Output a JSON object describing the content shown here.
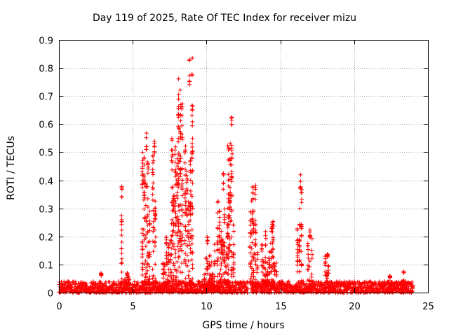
{
  "chart_data": {
    "type": "scatter",
    "title": "Day 119 of 2025, Rate Of TEC Index for receiver mizu",
    "xlabel": "GPS time / hours",
    "ylabel": "ROTI / TECUs",
    "xlim": [
      0,
      25
    ],
    "ylim": [
      0,
      0.9
    ],
    "xticks": [
      0,
      5,
      10,
      15,
      20,
      25
    ],
    "yticks": [
      0,
      0.1,
      0.2,
      0.3,
      0.4,
      0.5,
      0.6,
      0.7,
      0.8,
      0.9
    ],
    "xtick_labels": [
      "0",
      "5",
      "10",
      "15",
      "20",
      "25"
    ],
    "ytick_labels": [
      "0",
      "0.1",
      "0.2",
      "0.3",
      "0.4",
      "0.5",
      "0.6",
      "0.7",
      "0.8",
      "0.9"
    ],
    "grid": true,
    "marker": "+",
    "color": "#ff0000",
    "data_x_range": [
      0,
      24
    ],
    "baseline_level": [
      0.0,
      0.04
    ],
    "data_gap": [
      12.8,
      13.05
    ],
    "activity_regions": [
      {
        "x": [
          2.7,
          3.0
        ],
        "peak": 0.07
      },
      {
        "x": [
          4.2,
          4.3
        ],
        "peak": 0.39
      },
      {
        "x": [
          4.4,
          4.8
        ],
        "peak": 0.07
      },
      {
        "x": [
          5.6,
          6.2
        ],
        "peak": 0.57
      },
      {
        "x": [
          6.3,
          6.6
        ],
        "peak": 0.54
      },
      {
        "x": [
          7.0,
          7.6
        ],
        "peak": 0.2
      },
      {
        "x": [
          7.6,
          8.4
        ],
        "peak": 0.77
      },
      {
        "x": [
          8.5,
          9.1
        ],
        "peak": 0.86
      },
      {
        "x": [
          9.8,
          10.6
        ],
        "peak": 0.2
      },
      {
        "x": [
          10.7,
          11.5
        ],
        "peak": 0.43
      },
      {
        "x": [
          11.4,
          11.9
        ],
        "peak": 0.66
      },
      {
        "x": [
          12.9,
          13.5
        ],
        "peak": 0.39
      },
      {
        "x": [
          13.7,
          14.8
        ],
        "peak": 0.26
      },
      {
        "x": [
          16.1,
          16.5
        ],
        "peak": 0.43
      },
      {
        "x": [
          16.8,
          17.2
        ],
        "peak": 0.23
      },
      {
        "x": [
          18.0,
          18.3
        ],
        "peak": 0.14
      },
      {
        "x": [
          22.3,
          22.6
        ],
        "peak": 0.06
      },
      {
        "x": [
          23.2,
          23.5
        ],
        "peak": 0.08
      }
    ]
  }
}
